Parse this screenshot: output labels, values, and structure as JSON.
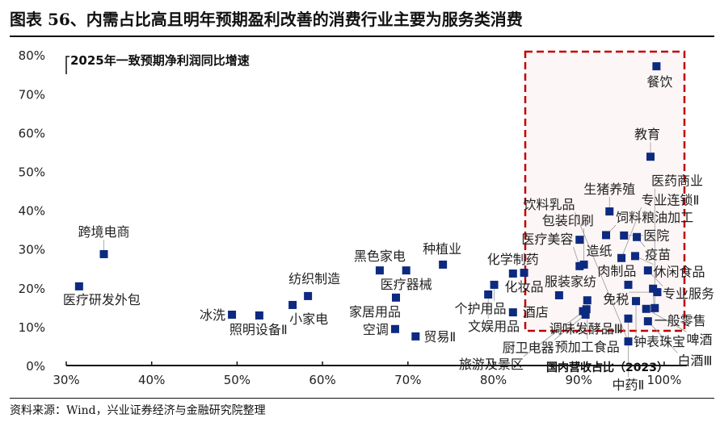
{
  "title": "图表 56、内需占比高且明年预期盈利改善的消费行业主要为服务类消费",
  "source": "资料来源：Wind，兴业证券经济与金融研究院整理",
  "colors": {
    "marker": "#0d2a80",
    "highlight_box": "#c00000",
    "highlight_fill": "#fdf6f6"
  },
  "chart_data": {
    "type": "scatter",
    "title": "",
    "xlabel": "国内营收占比（2023）",
    "ylabel": "2025年一致预期净利润同比增速",
    "xlim": [
      30,
      105
    ],
    "ylim": [
      0,
      80
    ],
    "x_ticks": [
      "30%",
      "40%",
      "50%",
      "60%",
      "70%",
      "80%",
      "90%",
      "100%"
    ],
    "y_ticks": [
      "0%",
      "10%",
      "20%",
      "30%",
      "40%",
      "50%",
      "60%",
      "70%",
      "80%"
    ],
    "grid": false,
    "highlight_region": {
      "x": [
        92,
        100
      ],
      "note": "dashed red box"
    },
    "points": [
      {
        "name": "医疗研发外包",
        "x": 31.5,
        "y": 20.4
      },
      {
        "name": "跨境电商",
        "x": 34.4,
        "y": 28.7
      },
      {
        "name": "冰洗",
        "x": 49.4,
        "y": 13.1
      },
      {
        "name": "照明设备Ⅱ",
        "x": 52.6,
        "y": 12.9
      },
      {
        "name": "小家电",
        "x": 56.5,
        "y": 15.6
      },
      {
        "name": "纺织制造",
        "x": 58.3,
        "y": 17.9
      },
      {
        "name": "黑色家电",
        "x": 66.7,
        "y": 24.5
      },
      {
        "name": "医疗器械",
        "x": 69.8,
        "y": 24.5
      },
      {
        "name": "家居用品",
        "x": 68.6,
        "y": 17.5
      },
      {
        "name": "空调",
        "x": 68.5,
        "y": 9.4
      },
      {
        "name": "贸易Ⅱ",
        "x": 70.9,
        "y": 7.5
      },
      {
        "name": "种植业",
        "x": 74.1,
        "y": 26.0
      },
      {
        "name": "化学制药",
        "x": 82.3,
        "y": 23.7
      },
      {
        "name": "化妆品",
        "x": 83.6,
        "y": 23.9
      },
      {
        "name": "个护用品",
        "x": 80.1,
        "y": 20.8
      },
      {
        "name": "文娱用品",
        "x": 79.4,
        "y": 18.3
      },
      {
        "name": "酒店",
        "x": 82.3,
        "y": 13.7
      },
      {
        "name": "服装家纺",
        "x": 87.7,
        "y": 18.1
      },
      {
        "name": "调味发酵品Ⅲ",
        "x": 90.5,
        "y": 14.0
      },
      {
        "name": "医疗美容",
        "x": 90.1,
        "y": 25.6
      },
      {
        "name": "包装印刷",
        "x": 90.6,
        "y": 26.0
      },
      {
        "name": "造纸",
        "x": 90.1,
        "y": 32.4
      },
      {
        "name": "生猪养殖",
        "x": 93.6,
        "y": 39.7
      },
      {
        "name": "饲料粮油加工",
        "x": 93.2,
        "y": 33.6
      },
      {
        "name": "医院",
        "x": 95.3,
        "y": 33.5
      },
      {
        "name": "疫苗",
        "x": 96.8,
        "y": 33.1
      },
      {
        "name": "专业连锁Ⅱ",
        "x": 95.0,
        "y": 27.7
      },
      {
        "name": "休闲食品",
        "x": 96.6,
        "y": 28.2
      },
      {
        "name": "专业服务",
        "x": 98.1,
        "y": 24.5
      },
      {
        "name": "肉制品",
        "x": 95.8,
        "y": 20.8
      },
      {
        "name": "一般零售",
        "x": 98.7,
        "y": 19.8
      },
      {
        "name": "免税",
        "x": 99.2,
        "y": 18.9
      },
      {
        "name": "预加工食品",
        "x": 91.0,
        "y": 16.8
      },
      {
        "name": "钟表珠宝",
        "x": 96.7,
        "y": 16.6
      },
      {
        "name": "厨卫电器",
        "x": 90.8,
        "y": 13.1
      },
      {
        "name": "旅游及景区",
        "x": 90.9,
        "y": 14.5
      },
      {
        "name": "中药Ⅱ",
        "x": 95.8,
        "y": 12.1
      },
      {
        "name": "啤酒",
        "x": 97.9,
        "y": 14.6
      },
      {
        "name": "医药商业",
        "x": 98.9,
        "y": 14.8
      },
      {
        "name": "白酒Ⅲ",
        "x": 98.1,
        "y": 11.4
      },
      {
        "name": "饮料乳品",
        "x": 95.8,
        "y": 6.2
      },
      {
        "name": "餐饮",
        "x": 99.1,
        "y": 77.1
      },
      {
        "name": "教育",
        "x": 98.4,
        "y": 53.8
      }
    ]
  }
}
